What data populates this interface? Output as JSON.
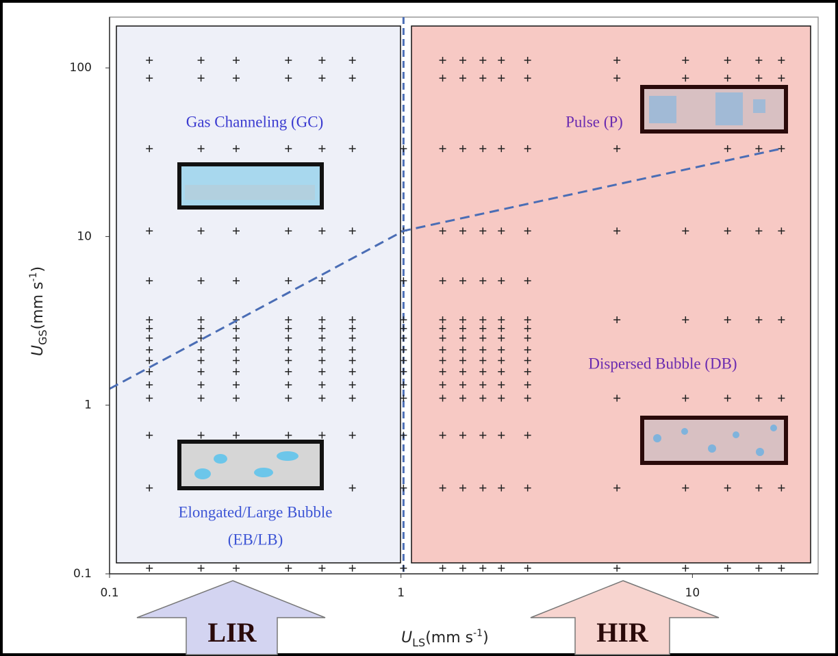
{
  "chart_data": {
    "type": "scatter",
    "log_x": true,
    "log_y": true,
    "xlim": [
      0.1,
      27
    ],
    "ylim": [
      0.1,
      200
    ],
    "xticks": [
      0.1,
      1,
      10
    ],
    "yticks": [
      0.1,
      1,
      10,
      100
    ],
    "x_label": {
      "symbol": "U",
      "subscript": "LS",
      "unit": "(mm s",
      "superscript": "-1",
      "close": ")"
    },
    "y_label": {
      "symbol": "U",
      "subscript": "GS",
      "unit": "(mm s",
      "superscript": "-1",
      "close": ")"
    },
    "annotations": [
      "Gas Channeling (GC)",
      "Pulse (P)",
      "Dispersed Bubble (DB)",
      "Elongated/Large Bubble",
      "(EB/LB)"
    ],
    "regions": [
      "LIR",
      "HIR"
    ],
    "boundary_x": 1.02,
    "fit_line": {
      "x": [
        0.1,
        1.02,
        20.2
      ],
      "y": [
        1.25,
        10.8,
        33.2
      ],
      "color": "#4a6db5"
    },
    "series": [
      {
        "color": "#222222",
        "x": [
          0.137,
          0.137,
          0.137,
          0.137,
          0.137,
          0.137,
          0.137,
          0.137,
          0.137,
          0.137,
          0.137,
          0.137,
          0.137,
          0.137,
          0.137,
          0.137,
          0.206,
          0.206,
          0.206,
          0.206,
          0.206,
          0.206,
          0.206,
          0.206,
          0.206,
          0.206,
          0.206,
          0.206,
          0.206,
          0.206,
          0.206,
          0.272,
          0.272,
          0.272,
          0.272,
          0.272,
          0.272,
          0.272,
          0.272,
          0.272,
          0.272,
          0.272,
          0.272,
          0.272,
          0.272,
          0.272,
          0.411,
          0.411,
          0.411,
          0.411,
          0.411,
          0.411,
          0.411,
          0.411,
          0.411,
          0.411,
          0.411,
          0.411,
          0.411,
          0.411,
          0.411,
          0.536,
          0.536,
          0.536,
          0.536,
          0.536,
          0.536,
          0.536,
          0.536,
          0.536,
          0.536,
          0.536,
          0.536,
          0.536,
          0.536,
          0.536,
          0.681,
          0.681,
          0.681,
          0.681,
          0.681,
          0.681,
          0.681,
          0.681,
          0.681,
          0.681,
          0.681,
          0.681,
          0.681,
          0.681,
          0.681,
          1.02,
          1.02,
          1.02,
          1.02,
          1.02,
          1.02,
          1.02,
          1.02,
          1.02,
          1.02,
          1.02,
          1.02,
          1.02,
          1.02,
          1.39,
          1.39,
          1.39,
          1.39,
          1.39,
          1.39,
          1.39,
          1.39,
          1.39,
          1.39,
          1.39,
          1.39,
          1.39,
          1.39,
          1.39,
          1.39,
          1.63,
          1.63,
          1.63,
          1.63,
          1.63,
          1.63,
          1.63,
          1.63,
          1.63,
          1.63,
          1.63,
          1.63,
          1.63,
          1.63,
          1.63,
          1.63,
          1.91,
          1.91,
          1.91,
          1.91,
          1.91,
          1.91,
          1.91,
          1.91,
          1.91,
          1.91,
          1.91,
          1.91,
          1.91,
          1.91,
          1.91,
          1.91,
          2.21,
          2.21,
          2.21,
          2.21,
          2.21,
          2.21,
          2.21,
          2.21,
          2.21,
          2.21,
          2.21,
          2.21,
          2.21,
          2.21,
          2.21,
          2.21,
          2.72,
          2.72,
          2.72,
          2.72,
          2.72,
          2.72,
          2.72,
          2.72,
          2.72,
          2.72,
          2.72,
          2.72,
          2.72,
          2.72,
          2.72,
          2.72,
          5.51,
          5.51,
          5.51,
          5.51,
          5.51,
          5.51,
          5.51,
          5.51,
          9.47,
          9.47,
          9.47,
          9.47,
          9.47,
          9.47,
          9.47,
          13.2,
          13.2,
          13.2,
          13.2,
          13.2,
          13.2,
          13.2,
          13.2,
          16.9,
          16.9,
          16.9,
          16.9,
          16.9,
          16.9,
          16.9,
          16.9,
          20.2,
          20.2,
          20.2,
          20.2,
          20.2,
          20.2,
          20.2,
          20.2
        ],
        "y": [
          111,
          86.9,
          33.2,
          10.8,
          5.47,
          3.21,
          2.85,
          2.5,
          2.13,
          1.84,
          1.58,
          1.32,
          1.1,
          0.663,
          0.323,
          0.108,
          111,
          86.9,
          33.2,
          10.8,
          5.47,
          3.21,
          2.85,
          2.5,
          2.13,
          1.84,
          1.58,
          1.32,
          1.1,
          0.663,
          0.108,
          111,
          86.9,
          33.2,
          10.8,
          5.47,
          3.21,
          2.85,
          2.5,
          2.13,
          1.84,
          1.58,
          1.32,
          1.1,
          0.663,
          0.108,
          111,
          86.9,
          33.2,
          10.8,
          5.47,
          3.21,
          2.85,
          2.5,
          2.13,
          1.84,
          1.58,
          1.32,
          1.1,
          0.663,
          0.108,
          111,
          86.9,
          33.2,
          10.8,
          5.47,
          3.21,
          2.85,
          2.5,
          2.13,
          1.84,
          1.58,
          1.32,
          1.1,
          0.663,
          0.108,
          111,
          86.9,
          33.2,
          10.8,
          3.21,
          2.85,
          2.5,
          2.13,
          1.84,
          1.58,
          1.32,
          1.1,
          0.663,
          0.323,
          0.108,
          33.2,
          10.8,
          5.47,
          3.21,
          2.85,
          2.5,
          2.13,
          1.84,
          1.58,
          1.32,
          1.1,
          0.663,
          0.323,
          0.108,
          111,
          86.9,
          33.2,
          10.8,
          5.47,
          3.21,
          2.85,
          2.5,
          2.13,
          1.84,
          1.58,
          1.32,
          1.1,
          0.663,
          0.323,
          0.108,
          111,
          86.9,
          33.2,
          10.8,
          5.47,
          3.21,
          2.85,
          2.5,
          2.13,
          1.84,
          1.58,
          1.32,
          1.1,
          0.663,
          0.323,
          0.108,
          111,
          86.9,
          33.2,
          10.8,
          5.47,
          3.21,
          2.85,
          2.5,
          2.13,
          1.84,
          1.58,
          1.32,
          1.1,
          0.663,
          0.323,
          0.108,
          111,
          86.9,
          33.2,
          10.8,
          5.47,
          3.21,
          2.85,
          2.5,
          2.13,
          1.84,
          1.58,
          1.32,
          1.1,
          0.663,
          0.323,
          0.108,
          111,
          86.9,
          33.2,
          10.8,
          5.47,
          3.21,
          2.85,
          2.5,
          2.13,
          1.84,
          1.58,
          1.32,
          1.1,
          0.663,
          0.323,
          0.108,
          111,
          86.9,
          33.2,
          10.8,
          3.21,
          1.1,
          0.323,
          0.108,
          111,
          86.9,
          10.8,
          3.21,
          1.1,
          0.323,
          0.108,
          111,
          86.9,
          33.2,
          10.8,
          3.21,
          1.1,
          0.323,
          0.108,
          111,
          86.9,
          33.2,
          10.8,
          3.21,
          1.1,
          0.323,
          0.108,
          111,
          86.9,
          33.2,
          10.8,
          3.21,
          1.1,
          0.323,
          0.108
        ]
      }
    ]
  }
}
